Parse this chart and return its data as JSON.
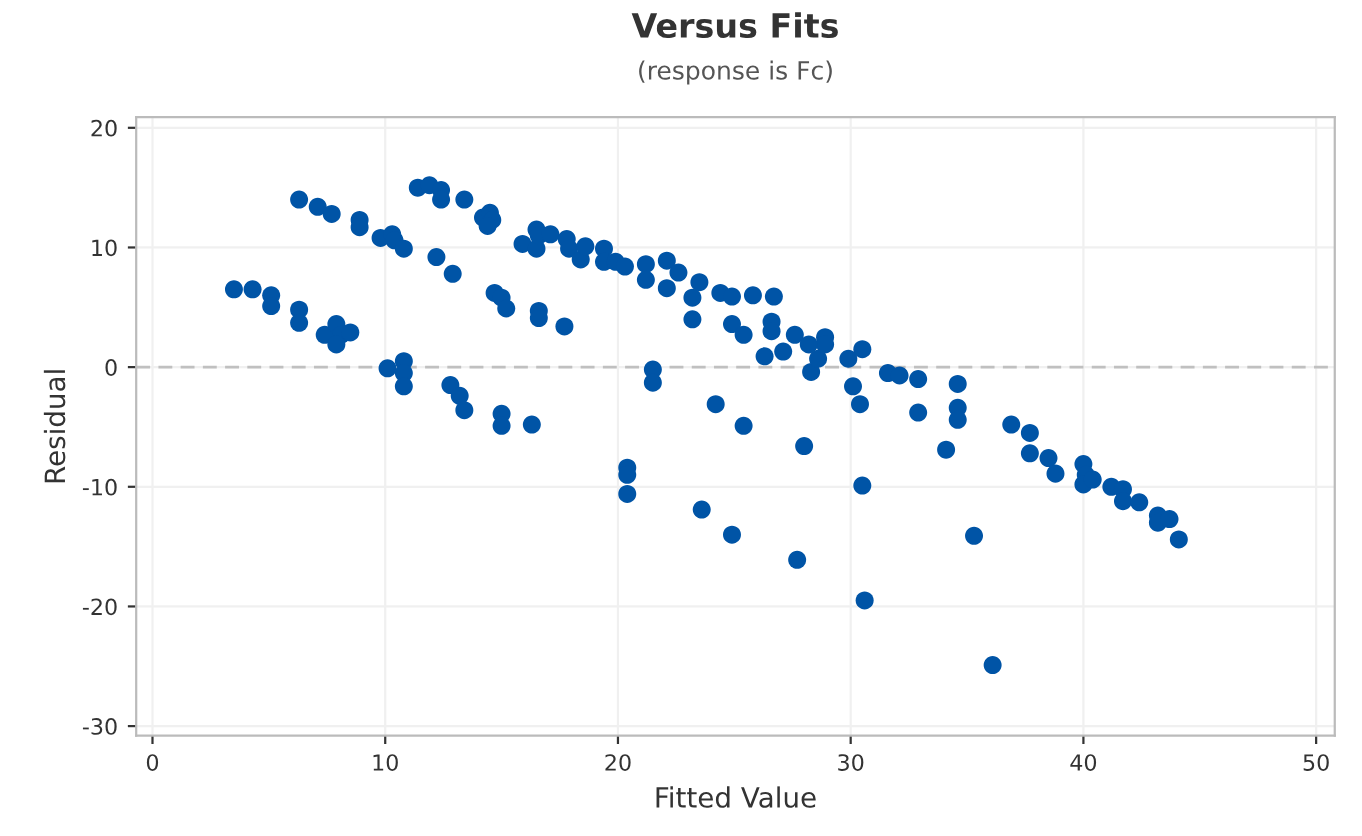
{
  "chart_data": {
    "type": "scatter",
    "title": "Versus Fits",
    "subtitle": "(response is Fc)",
    "xlabel": "Fitted Value",
    "ylabel": "Residual",
    "x": [
      6.3,
      7.1,
      7.7,
      8.9,
      8.9,
      9.8,
      10.3,
      10.4,
      10.8,
      11.4,
      11.9,
      12.4,
      12.4,
      13.4,
      14.2,
      14.5,
      14.6,
      14.4,
      15.9,
      16.5,
      16.5,
      16.6,
      17.1,
      17.8,
      17.9,
      18.4,
      18.6,
      19.4,
      19.4,
      19.9,
      20.3,
      12.2,
      12.9,
      14.7,
      15.0,
      15.2,
      16.6,
      16.6,
      17.7,
      3.5,
      4.3,
      5.1,
      5.1,
      6.3,
      6.3,
      7.4,
      7.9,
      8.1,
      7.9,
      8.5,
      10.1,
      10.8,
      10.8,
      10.8,
      12.8,
      13.2,
      13.4,
      15.0,
      15.0,
      16.3,
      20.4,
      20.4,
      20.4,
      21.5,
      21.5,
      23.6,
      24.2,
      25.4,
      24.9,
      27.7,
      28.0,
      30.5,
      30.6,
      36.1,
      35.3,
      34.1,
      26.3,
      27.1,
      28.3,
      28.6,
      29.9,
      30.5,
      30.1,
      30.4,
      31.6,
      32.1,
      32.9,
      32.9,
      34.6,
      34.6,
      34.6,
      36.9,
      37.7,
      37.7,
      38.5,
      38.8,
      40.0,
      40.1,
      40.0,
      40.4,
      41.2,
      41.7,
      41.7,
      42.4,
      43.2,
      43.2,
      43.7,
      44.1,
      21.2,
      21.2,
      22.1,
      22.1,
      22.6,
      23.5,
      23.2,
      23.2,
      24.4,
      24.9,
      25.8,
      26.7,
      24.9,
      25.4,
      26.6,
      26.6,
      27.6,
      28.9,
      28.9,
      28.2
    ],
    "values": [
      14.0,
      13.4,
      12.8,
      12.3,
      11.7,
      10.8,
      11.1,
      10.6,
      9.9,
      15.0,
      15.2,
      14.8,
      14.0,
      14.0,
      12.5,
      12.9,
      12.3,
      11.8,
      10.3,
      11.5,
      9.9,
      11.0,
      11.1,
      10.7,
      9.9,
      9.0,
      10.1,
      9.9,
      8.8,
      8.8,
      8.4,
      9.2,
      7.8,
      6.2,
      5.8,
      4.9,
      4.7,
      4.1,
      3.4,
      6.5,
      6.5,
      6.0,
      5.1,
      4.8,
      3.7,
      2.7,
      3.6,
      2.7,
      1.9,
      2.9,
      -0.1,
      0.5,
      -0.5,
      -1.6,
      -1.5,
      -2.4,
      -3.6,
      -3.9,
      -4.9,
      -4.8,
      -8.4,
      -9.0,
      -10.6,
      -0.2,
      -1.3,
      -11.9,
      -3.1,
      -4.9,
      -14.0,
      -16.1,
      -6.6,
      -9.9,
      -19.5,
      -24.9,
      -14.1,
      -6.9,
      0.9,
      1.3,
      -0.4,
      0.7,
      0.7,
      1.5,
      -1.6,
      -3.1,
      -0.5,
      -0.7,
      -1.0,
      -3.8,
      -1.4,
      -3.4,
      -4.4,
      -4.8,
      -5.5,
      -7.2,
      -7.6,
      -8.9,
      -8.1,
      -9.0,
      -9.8,
      -9.4,
      -10.0,
      -10.2,
      -11.2,
      -11.3,
      -12.4,
      -13.0,
      -12.7,
      -14.4,
      8.6,
      7.3,
      8.9,
      6.6,
      7.9,
      7.1,
      5.8,
      4.0,
      6.2,
      5.9,
      6.0,
      5.9,
      3.6,
      2.7,
      3.8,
      3.0,
      2.7,
      2.5,
      1.9,
      1.9
    ],
    "color": "#0054a6",
    "marker": "circle",
    "xlim": [
      -0.7,
      50.8
    ],
    "ylim": [
      -30.8,
      20.9
    ],
    "xticks": [
      0,
      10,
      20,
      30,
      40,
      50
    ],
    "yticks": [
      -30,
      -20,
      -10,
      0,
      10,
      20
    ],
    "grid": true,
    "ref_lines": [
      {
        "axis": "y",
        "value": 0,
        "color": "#c0c0c0",
        "line_style": "dashed"
      }
    ]
  }
}
